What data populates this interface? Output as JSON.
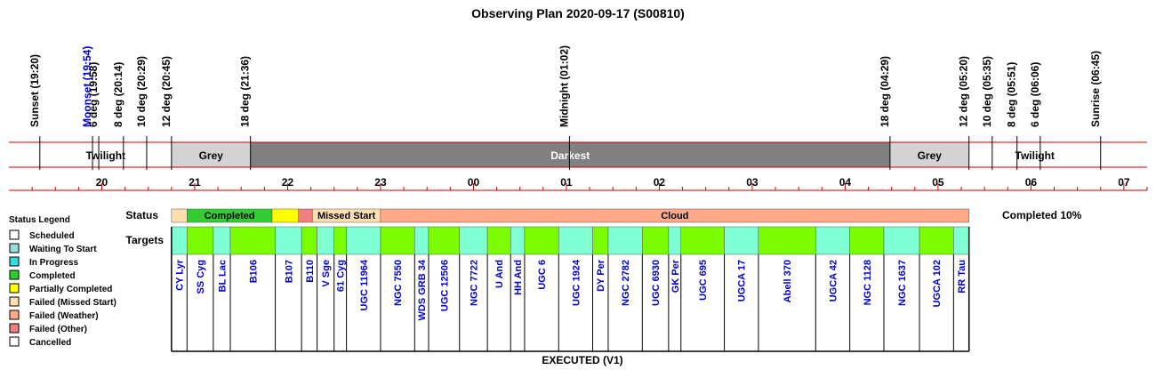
{
  "chart_data": {
    "type": "timeline",
    "title": "Observing Plan 2020-09-17 (S00810)",
    "footer": "EXECUTED (V1)",
    "completion_text": "Completed 10%",
    "x_unit": "hours (local time, evening of 2020-09-17 to morning of 2020-09-18)",
    "x_range": [
      19.0,
      31.25
    ],
    "hour_ticks": [
      "20",
      "21",
      "22",
      "23",
      "00",
      "01",
      "02",
      "03",
      "04",
      "05",
      "06",
      "07"
    ],
    "hour_tick_values": [
      20,
      21,
      22,
      23,
      24,
      25,
      26,
      27,
      28,
      29,
      30,
      31
    ],
    "events": [
      {
        "label": "Sunset (19:20)",
        "t": 19.333,
        "color": "#000000"
      },
      {
        "label": "Moonset (19:54)",
        "t": 19.9,
        "color": "#0000cc"
      },
      {
        "label": "6 deg (19:58)",
        "t": 19.967,
        "color": "#000000"
      },
      {
        "label": "8 deg (20:14)",
        "t": 20.233,
        "color": "#000000"
      },
      {
        "label": "10 deg (20:29)",
        "t": 20.483,
        "color": "#000000"
      },
      {
        "label": "12 deg (20:45)",
        "t": 20.75,
        "color": "#000000"
      },
      {
        "label": "18 deg (21:36)",
        "t": 21.6,
        "color": "#000000"
      },
      {
        "label": "Midnight (01:02)",
        "t": 25.033,
        "color": "#000000"
      },
      {
        "label": "18 deg (04:29)",
        "t": 28.483,
        "color": "#000000"
      },
      {
        "label": "12 deg (05:20)",
        "t": 29.333,
        "color": "#000000"
      },
      {
        "label": "10 deg (05:35)",
        "t": 29.583,
        "color": "#000000"
      },
      {
        "label": "8 deg (05:51)",
        "t": 29.85,
        "color": "#000000"
      },
      {
        "label": "6 deg (06:06)",
        "t": 30.1,
        "color": "#000000"
      },
      {
        "label": "Sunrise (06:45)",
        "t": 30.75,
        "color": "#000000"
      }
    ],
    "sky_phases": [
      {
        "label": "Twilight",
        "start": 19.333,
        "end": 20.75,
        "color": "#ffffff",
        "text_color": "#000000"
      },
      {
        "label": "Grey",
        "start": 20.75,
        "end": 21.6,
        "color": "#d3d3d3",
        "text_color": "#000000"
      },
      {
        "label": "Darkest",
        "start": 21.6,
        "end": 28.483,
        "color": "#808080",
        "text_color": "#ffffff"
      },
      {
        "label": "Grey",
        "start": 28.483,
        "end": 29.333,
        "color": "#d3d3d3",
        "text_color": "#000000"
      },
      {
        "label": "Twilight",
        "start": 29.333,
        "end": 30.75,
        "color": "#ffffff",
        "text_color": "#000000"
      }
    ],
    "plan_window": [
      20.75,
      29.333
    ],
    "status_legend_title": "Status Legend",
    "status_legend": [
      {
        "label": "Scheduled",
        "color": "#ffffff"
      },
      {
        "label": "Waiting To Start",
        "color": "#99dddd"
      },
      {
        "label": "In Progress",
        "color": "#33dddd"
      },
      {
        "label": "Completed",
        "color": "#33cc33"
      },
      {
        "label": "Partially Completed",
        "color": "#ffff00"
      },
      {
        "label": "Failed (Missed Start)",
        "color": "#ffdfae"
      },
      {
        "label": "Failed (Weather)",
        "color": "#ffaa88"
      },
      {
        "label": "Failed (Other)",
        "color": "#f08080"
      },
      {
        "label": "Cancelled",
        "color": "#ffffff"
      }
    ],
    "row_labels": {
      "status": "Status",
      "targets": "Targets"
    },
    "status_segments": [
      {
        "label": "",
        "start": 20.75,
        "end": 20.917,
        "color": "#ffdfae"
      },
      {
        "label": "Completed",
        "start": 20.917,
        "end": 21.833,
        "color": "#33cc33"
      },
      {
        "label": "",
        "start": 21.833,
        "end": 22.117,
        "color": "#ffff00"
      },
      {
        "label": "",
        "start": 22.117,
        "end": 22.267,
        "color": "#f08080"
      },
      {
        "label": "Missed Start",
        "start": 22.267,
        "end": 23.0,
        "color": "#ffdfae"
      },
      {
        "label": "Cloud",
        "start": 23.0,
        "end": 29.333,
        "color": "#ffaa88"
      }
    ],
    "targets": [
      {
        "name": "CY Lyr",
        "start": 20.75,
        "end": 20.917,
        "color": "#7fffd4"
      },
      {
        "name": "SS Cyg",
        "start": 20.917,
        "end": 21.2,
        "color": "#7cfc00"
      },
      {
        "name": "BL Lac",
        "start": 21.2,
        "end": 21.383,
        "color": "#7fffd4"
      },
      {
        "name": "B106",
        "start": 21.383,
        "end": 21.867,
        "color": "#7cfc00"
      },
      {
        "name": "B107",
        "start": 21.867,
        "end": 22.15,
        "color": "#7fffd4"
      },
      {
        "name": "B110",
        "start": 22.15,
        "end": 22.317,
        "color": "#7cfc00"
      },
      {
        "name": "V Sge",
        "start": 22.317,
        "end": 22.5,
        "color": "#7fffd4"
      },
      {
        "name": "61 Cyg",
        "start": 22.5,
        "end": 22.633,
        "color": "#7cfc00"
      },
      {
        "name": "UGC 11964",
        "start": 22.633,
        "end": 23.0,
        "color": "#7fffd4"
      },
      {
        "name": "NGC 7550",
        "start": 23.0,
        "end": 23.367,
        "color": "#7cfc00"
      },
      {
        "name": "WDS GRB 34",
        "start": 23.367,
        "end": 23.517,
        "color": "#7fffd4"
      },
      {
        "name": "UGC 12506",
        "start": 23.517,
        "end": 23.85,
        "color": "#7cfc00"
      },
      {
        "name": "NGC 7722",
        "start": 23.85,
        "end": 24.15,
        "color": "#7fffd4"
      },
      {
        "name": "U And",
        "start": 24.15,
        "end": 24.4,
        "color": "#7cfc00"
      },
      {
        "name": "HH And",
        "start": 24.4,
        "end": 24.55,
        "color": "#7fffd4"
      },
      {
        "name": "UGC 6",
        "start": 24.55,
        "end": 24.917,
        "color": "#7cfc00"
      },
      {
        "name": "UGC 1924",
        "start": 24.917,
        "end": 25.283,
        "color": "#7fffd4"
      },
      {
        "name": "DY Per",
        "start": 25.283,
        "end": 25.45,
        "color": "#7cfc00"
      },
      {
        "name": "NGC 2782",
        "start": 25.45,
        "end": 25.817,
        "color": "#7fffd4"
      },
      {
        "name": "UGC 6930",
        "start": 25.817,
        "end": 26.1,
        "color": "#7cfc00"
      },
      {
        "name": "GK Per",
        "start": 26.1,
        "end": 26.233,
        "color": "#7fffd4"
      },
      {
        "name": "UGC 695",
        "start": 26.233,
        "end": 26.7,
        "color": "#7cfc00"
      },
      {
        "name": "UGCA 17",
        "start": 26.7,
        "end": 27.067,
        "color": "#7fffd4"
      },
      {
        "name": "Abell 370",
        "start": 27.067,
        "end": 27.683,
        "color": "#7cfc00"
      },
      {
        "name": "UGCA 42",
        "start": 27.683,
        "end": 28.05,
        "color": "#7fffd4"
      },
      {
        "name": "NGC 1128",
        "start": 28.05,
        "end": 28.417,
        "color": "#7cfc00"
      },
      {
        "name": "NGC 1637",
        "start": 28.417,
        "end": 28.8,
        "color": "#7fffd4"
      },
      {
        "name": "UGCA 102",
        "start": 28.8,
        "end": 29.167,
        "color": "#7cfc00"
      },
      {
        "name": "RR Tau",
        "start": 29.167,
        "end": 29.333,
        "color": "#7fffd4"
      }
    ]
  }
}
